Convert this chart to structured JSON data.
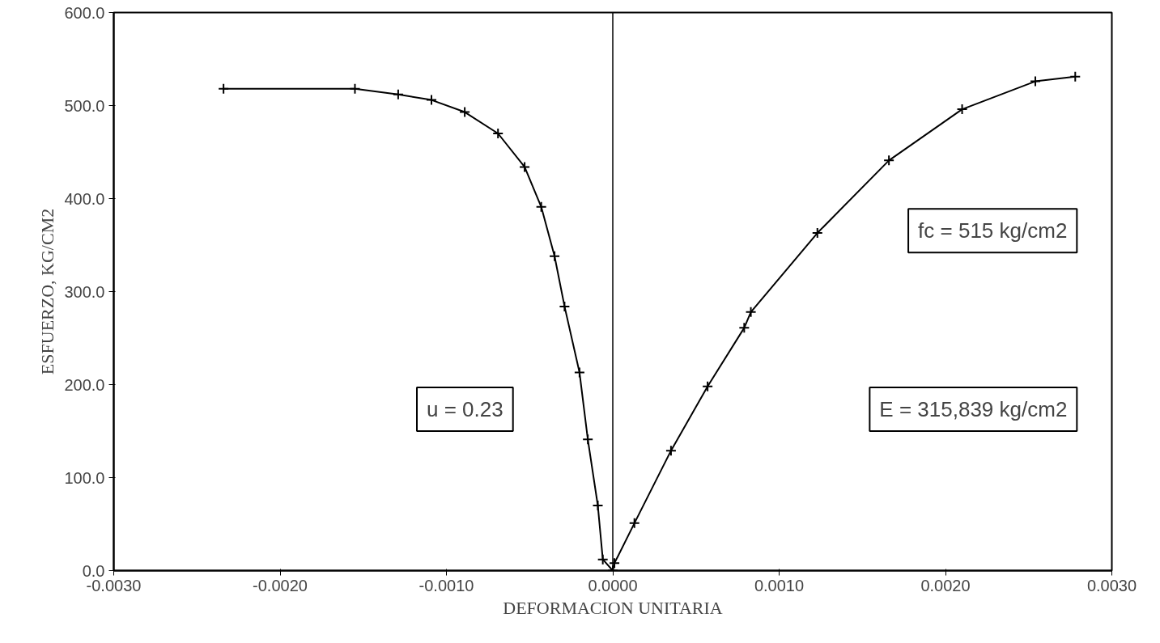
{
  "chart_data": {
    "type": "line",
    "xlabel": "DEFORMACION UNITARIA",
    "ylabel": "ESFUERZO, KG/CM2",
    "xlim": [
      -0.003,
      0.003
    ],
    "ylim": [
      0,
      600
    ],
    "xticks": [
      {
        "value": -0.003,
        "label": "-0.0030"
      },
      {
        "value": -0.002,
        "label": "-0.0020"
      },
      {
        "value": -0.001,
        "label": "-0.0010"
      },
      {
        "value": 0,
        "label": "0.0000"
      },
      {
        "value": 0.001,
        "label": "0.0010"
      },
      {
        "value": 0.002,
        "label": "0.0020"
      },
      {
        "value": 0.003,
        "label": "0.0030"
      }
    ],
    "yticks": [
      {
        "value": 0,
        "label": "0.0"
      },
      {
        "value": 100,
        "label": "100.0"
      },
      {
        "value": 200,
        "label": "200.0"
      },
      {
        "value": 300,
        "label": "300.0"
      },
      {
        "value": 400,
        "label": "400.0"
      },
      {
        "value": 500,
        "label": "500.0"
      },
      {
        "value": 600,
        "label": "600.0"
      }
    ],
    "grid": false,
    "marker": "cross",
    "line_style": "solid",
    "series": [
      {
        "color": "#000000",
        "x": [
          -0.00234,
          -0.00155,
          -0.00129,
          -0.00109,
          -0.00089,
          -0.00069,
          -0.00053,
          -0.00043,
          -0.00035,
          -0.00029,
          -0.0002,
          -0.00015,
          -9e-05,
          -6e-05,
          0.0
        ],
        "values": [
          518,
          518,
          512,
          506,
          493,
          470,
          434,
          391,
          338,
          284,
          213,
          141,
          70,
          12,
          0
        ]
      },
      {
        "color": "#000000",
        "x": [
          0.0,
          1e-05,
          0.00013,
          0.00035,
          0.00057,
          0.00079,
          0.00083,
          0.00123,
          0.00166,
          0.0021,
          0.00254,
          0.00278
        ],
        "values": [
          0,
          8,
          51,
          129,
          198,
          261,
          278,
          363,
          441,
          496,
          526,
          531
        ]
      }
    ],
    "ref_lines": [
      {
        "axis": "x",
        "value": 0,
        "color": "#000000"
      }
    ],
    "annotations": [
      "u = 0.23",
      "fc = 515 kg/cm2",
      "E = 315,839 kg/cm2"
    ]
  }
}
